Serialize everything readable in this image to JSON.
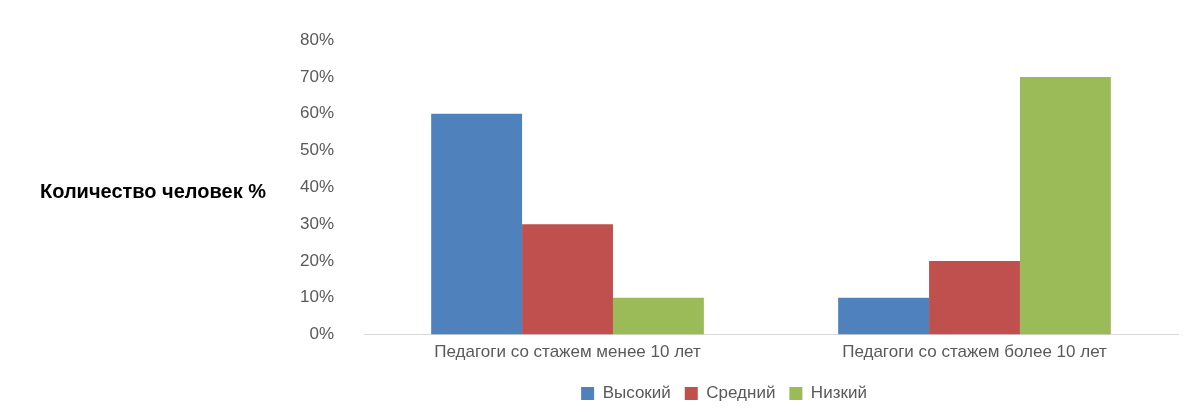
{
  "chart_data": {
    "type": "bar",
    "ylabel": "Количество человек %",
    "categories": [
      "Педагоги со стажем менее 10 лет",
      "Педагоги со стажем более 10 лет"
    ],
    "series": [
      {
        "name": "Высокий",
        "color": "#4f81bd",
        "values": [
          60,
          10
        ]
      },
      {
        "name": "Средний",
        "color": "#c0504d",
        "values": [
          30,
          20
        ]
      },
      {
        "name": "Низкий",
        "color": "#9bbb59",
        "values": [
          10,
          70
        ]
      }
    ],
    "ylim": [
      0,
      80
    ],
    "yticks": [
      {
        "value": 0,
        "label": "0%"
      },
      {
        "value": 10,
        "label": "10%"
      },
      {
        "value": 20,
        "label": "20%"
      },
      {
        "value": 30,
        "label": "30%"
      },
      {
        "value": 40,
        "label": "40%"
      },
      {
        "value": 50,
        "label": "50%"
      },
      {
        "value": 60,
        "label": "60%"
      },
      {
        "value": 70,
        "label": "70%"
      },
      {
        "value": 80,
        "label": "80%"
      }
    ],
    "grid": false,
    "legend": "bottom"
  }
}
